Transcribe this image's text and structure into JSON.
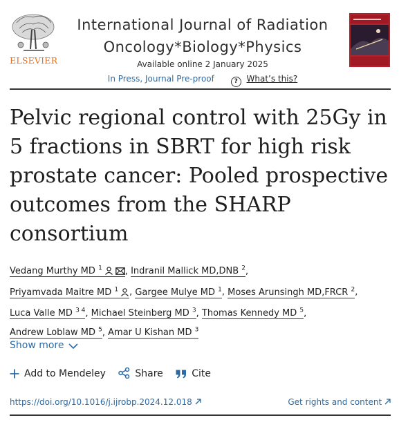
{
  "publisher": {
    "name": "ELSEVIER",
    "logo_icon": "elsevier-tree-icon"
  },
  "journal": {
    "title_line1": "International Journal of Radiation",
    "title_line2": "Oncology*Biology*Physics",
    "available": "Available online 2 January 2025",
    "status": "In Press, Journal Pre-proof",
    "whats_this": "What’s this?",
    "cover_icon": "journal-cover-thumbnail"
  },
  "article": {
    "title": "Pelvic regional control with 25Gy in 5 fractions in SBRT for high risk prostate cancer: Pooled prospective outcomes from the SHARP consortium"
  },
  "authors": [
    {
      "name": "Vedang Murthy MD",
      "aff": "1"
    },
    {
      "name": "Indranil Mallick MD,DNB",
      "aff": "2"
    },
    {
      "name": "Priyamvada Maitre MD",
      "aff": "1"
    },
    {
      "name": "Gargee Mulye MD",
      "aff": "1"
    },
    {
      "name": "Moses Arunsingh MD,FRCR",
      "aff": "2"
    },
    {
      "name": "Luca Valle MD",
      "aff": "3 4"
    },
    {
      "name": "Michael Steinberg MD",
      "aff": "3"
    },
    {
      "name": "Thomas Kennedy MD",
      "aff": "5"
    },
    {
      "name": "Andrew Loblaw MD",
      "aff": "5"
    },
    {
      "name": "Amar U Kishan MD",
      "aff": "3"
    }
  ],
  "show_more": "Show more",
  "actions": {
    "mendeley": "Add to Mendeley",
    "share": "Share",
    "cite": "Cite"
  },
  "links": {
    "doi": "https://doi.org/10.1016/j.ijrobp.2024.12.018",
    "rights": "Get rights and content"
  },
  "colors": {
    "link": "#2b6aa5",
    "elsevier_orange": "#e9711c"
  }
}
